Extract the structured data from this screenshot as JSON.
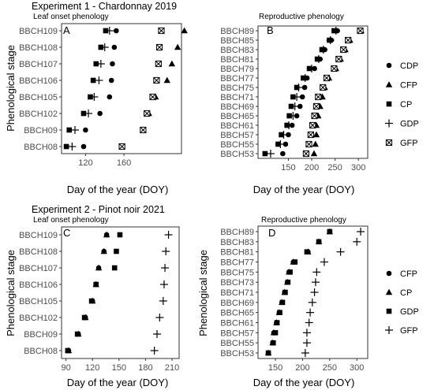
{
  "experiments": [
    {
      "title": "Experiment 1 - Chardonnay 2019"
    },
    {
      "title": "Experiment 2 - Pinot noir 2021"
    }
  ],
  "chart_data": [
    {
      "type": "scatter",
      "panel": "A",
      "subtitle": "Leaf onset phenology",
      "ylabel": "Phenological stage",
      "xlabel": "Day of the year (DOY)",
      "xlim": [
        95,
        220
      ],
      "xticks": [
        120,
        160
      ],
      "categories": [
        "BBCH08",
        "BBCH09",
        "BBCH102",
        "BBCH105",
        "BBCH106",
        "BBCH107",
        "BBCH108",
        "BBCH109"
      ],
      "series": [
        {
          "name": "CDP",
          "symbol": "circle",
          "values": [
            118,
            120,
            135,
            145,
            147,
            148,
            150,
            152
          ]
        },
        {
          "name": "CFP",
          "symbol": "triangle",
          "values": [
            158,
            180,
            186,
            193,
            205,
            210,
            216,
            223
          ]
        },
        {
          "name": "CP",
          "symbol": "square",
          "values": [
            100,
            103,
            118,
            125,
            128,
            131,
            136,
            141
          ]
        },
        {
          "name": "GDP",
          "symbol": "plus",
          "values": [
            106,
            109,
            123,
            129,
            134,
            136,
            140,
            145
          ]
        },
        {
          "name": "GFP",
          "symbol": "boxx",
          "values": [
            158,
            180,
            184,
            190,
            194,
            196,
            197,
            199
          ]
        }
      ]
    },
    {
      "type": "scatter",
      "panel": "B",
      "subtitle": "Reproductive phenology",
      "xlabel": "Day of the year (DOY)",
      "xlim": [
        85,
        320
      ],
      "xticks": [
        150,
        200,
        250,
        300
      ],
      "categories": [
        "BBCH53",
        "BBCH55",
        "BBCH57",
        "BBCH61",
        "BBCH65",
        "BBCH69",
        "BBCH71",
        "BBCH75",
        "BBCH77",
        "BBCH79",
        "BBCH81",
        "BBCH83",
        "BBCH85",
        "BBCH89"
      ],
      "series": [
        {
          "name": "CDP",
          "symbol": "circle",
          "values": [
            138,
            144,
            150,
            158,
            168,
            175,
            180,
            185,
            190,
            206,
            218,
            228,
            242,
            255
          ]
        },
        {
          "name": "CFP",
          "symbol": "triangle",
          "values": [
            205,
            208,
            210,
            210,
            214,
            218,
            223,
            228,
            237,
            252,
            262,
            272,
            282,
            306
          ]
        },
        {
          "name": "CP",
          "symbol": "square",
          "values": [
            100,
            128,
            135,
            147,
            152,
            156,
            160,
            168,
            182,
            195,
            212,
            222,
            238,
            248
          ]
        },
        {
          "name": "GDP",
          "symbol": "plus",
          "values": [
            112,
            133,
            140,
            151,
            160,
            164,
            168,
            172,
            186,
            200,
            215,
            225,
            240,
            252
          ]
        },
        {
          "name": "GFP",
          "symbol": "boxx",
          "values": [
            188,
            194,
            198,
            202,
            206,
            210,
            214,
            224,
            232,
            248,
            258,
            268,
            278,
            304
          ]
        }
      ],
      "legend": [
        "CDP",
        "CFP",
        "CP",
        "GDP",
        "GFP"
      ],
      "legend_position": "right"
    },
    {
      "type": "scatter",
      "panel": "C",
      "subtitle": "Leaf onset phenology",
      "ylabel": "Phenological stage",
      "xlabel": "Day of the year (DOY)",
      "xlim": [
        85,
        218
      ],
      "xticks": [
        90,
        120,
        150,
        180,
        210
      ],
      "categories": [
        "BBCH08",
        "BBCH09",
        "BBCH102",
        "BBCH105",
        "BBCH106",
        "BBCH107",
        "BBCH108",
        "BBCH109"
      ],
      "series": [
        {
          "name": "CFP",
          "symbol": "circle",
          "values": [
            93,
            104,
            112,
            120,
            124,
            127,
            133,
            136
          ]
        },
        {
          "name": "CP",
          "symbol": "triangle",
          "values": [
            93,
            104,
            112,
            120,
            124,
            127,
            133,
            136
          ]
        },
        {
          "name": "GDP",
          "symbol": "square",
          "values": [
            92,
            103,
            111,
            119,
            124,
            145,
            147,
            151
          ]
        },
        {
          "name": "GFP",
          "symbol": "plus",
          "values": [
            190,
            193,
            196,
            200,
            201,
            202,
            203,
            206
          ]
        }
      ]
    },
    {
      "type": "scatter",
      "panel": "D",
      "subtitle": "Reproductive phenology",
      "xlabel": "Day of the year (DOY)",
      "xlim": [
        118,
        320
      ],
      "xticks": [
        150,
        200,
        250,
        300
      ],
      "categories": [
        "BBCH53",
        "BBCH55",
        "BBCH57",
        "BBCH61",
        "BBCH65",
        "BBCH69",
        "BBCH71",
        "BBCH73",
        "BBCH75",
        "BBCH77",
        "BBCH81",
        "BBCH83",
        "BBCH89"
      ],
      "series": [
        {
          "name": "CFP",
          "symbol": "circle",
          "values": [
            137,
            145,
            147,
            152,
            157,
            162,
            167,
            172,
            175,
            183,
            210,
            230,
            250
          ]
        },
        {
          "name": "CP",
          "symbol": "triangle",
          "values": [
            137,
            145,
            147,
            152,
            157,
            162,
            167,
            172,
            175,
            183,
            210,
            230,
            250
          ]
        },
        {
          "name": "GDP",
          "symbol": "square",
          "values": [
            137,
            146,
            150,
            153,
            158,
            163,
            168,
            173,
            177,
            186,
            208,
            230,
            250
          ]
        },
        {
          "name": "GFP",
          "symbol": "plus",
          "values": [
            205,
            208,
            208,
            212,
            214,
            218,
            222,
            224,
            226,
            240,
            270,
            300,
            307
          ]
        }
      ],
      "legend": [
        "CFP",
        "CP",
        "GDP",
        "GFP"
      ],
      "legend_position": "right"
    }
  ]
}
